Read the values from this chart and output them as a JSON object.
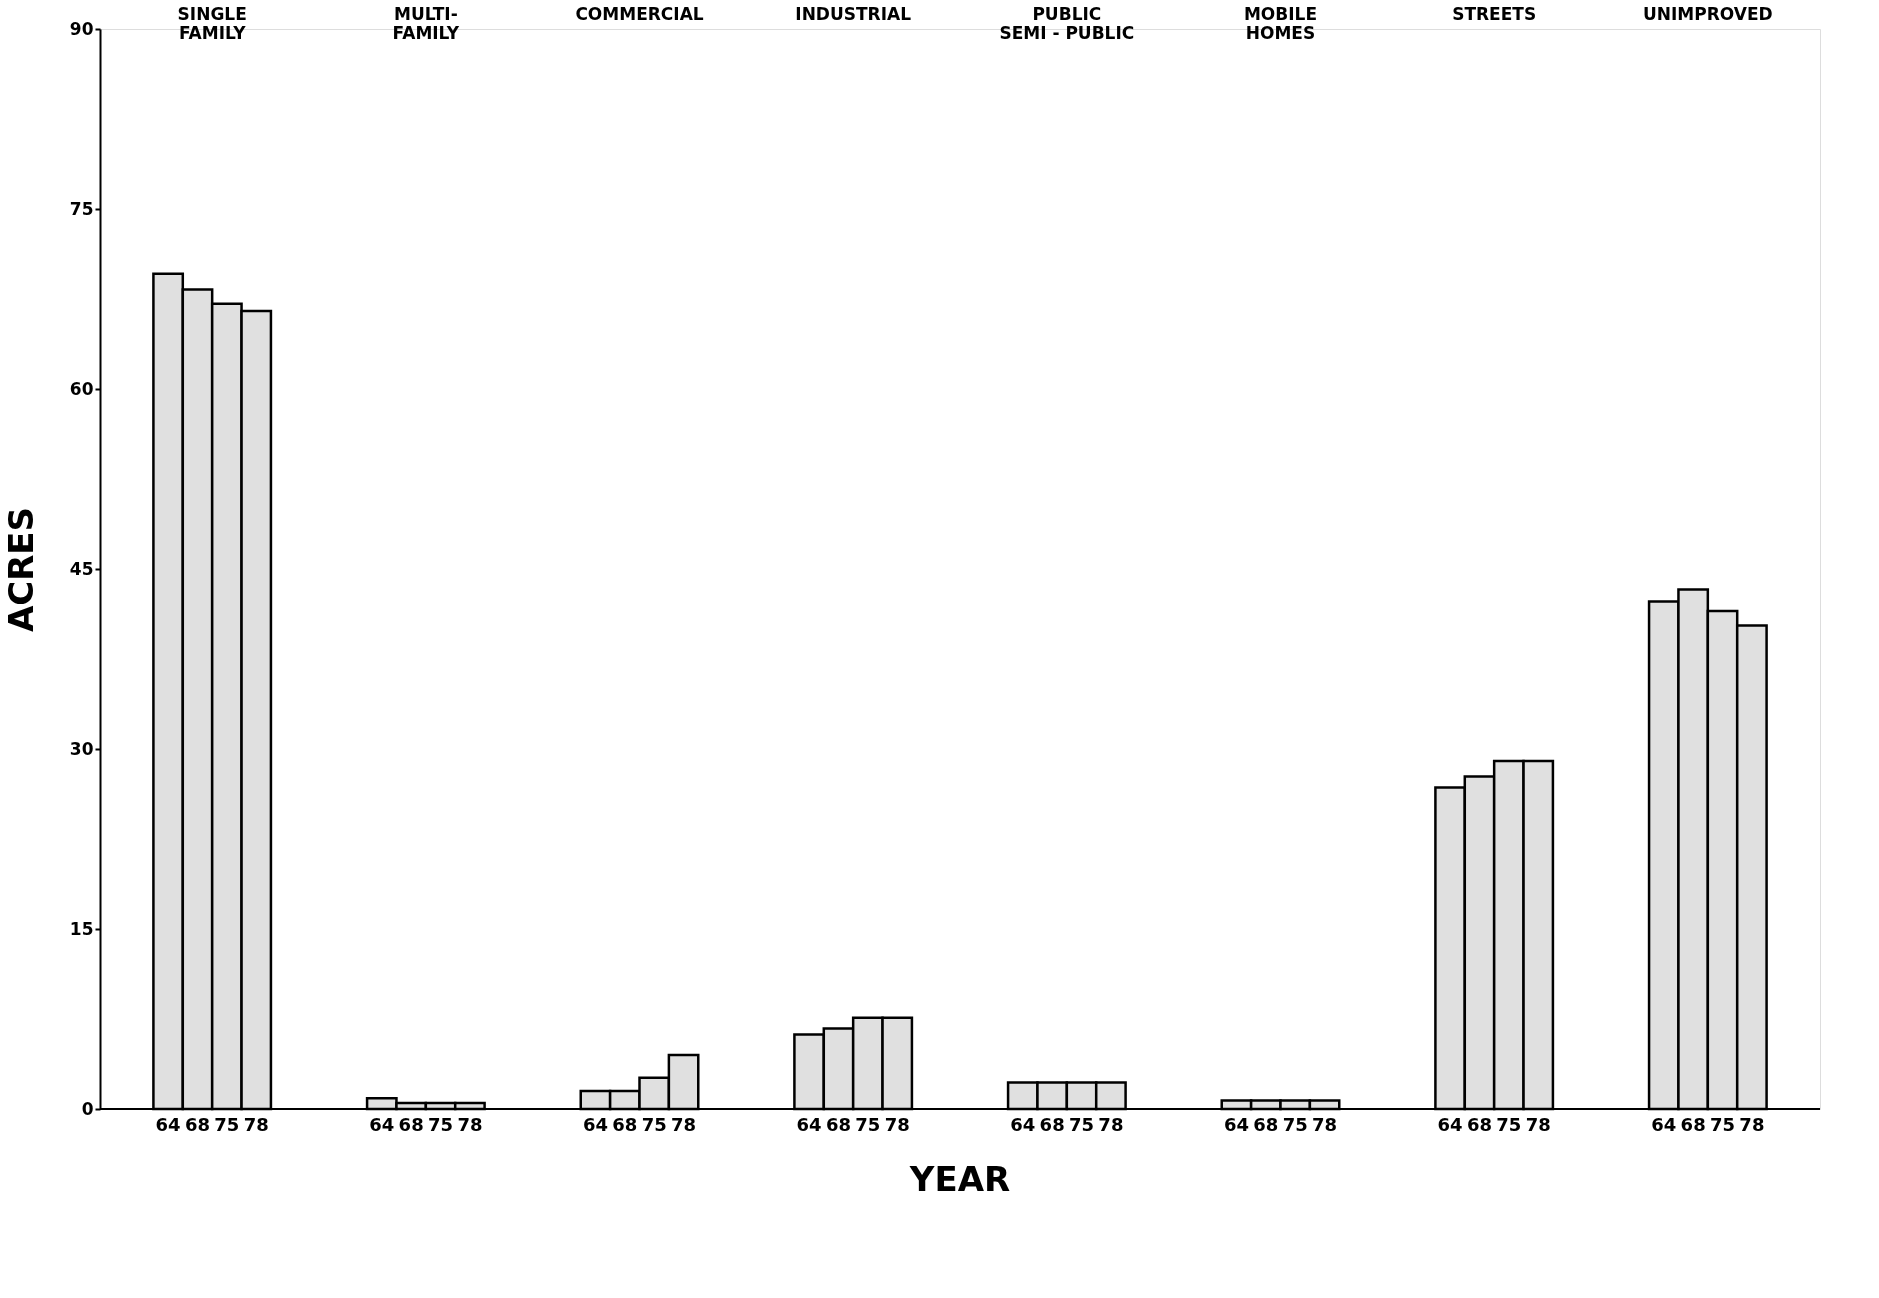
{
  "chart_data": {
    "type": "bar",
    "xlabel": "YEAR",
    "ylabel": "ACRES",
    "categories": [
      "SINGLE\nFAMILY",
      "MULTI-\nFAMILY",
      "COMMERCIAL",
      "INDUSTRIAL",
      "PUBLIC\nSEMI - PUBLIC",
      "MOBILE\nHOMES",
      "STREETS",
      "UNIMPROVED"
    ],
    "series": [
      {
        "name": "64",
        "color": "#e0e0e0",
        "values": [
          69.6,
          0.9,
          1.5,
          6.2,
          2.2,
          0.7,
          26.8,
          42.3
        ]
      },
      {
        "name": "68",
        "color": "#e0e0e0",
        "values": [
          68.3,
          0.5,
          1.5,
          6.7,
          2.2,
          0.7,
          27.7,
          43.3
        ]
      },
      {
        "name": "75",
        "color": "#e0e0e0",
        "values": [
          67.1,
          0.5,
          2.6,
          7.6,
          2.2,
          0.7,
          29.0,
          41.5
        ]
      },
      {
        "name": "78",
        "color": "#e0e0e0",
        "values": [
          66.5,
          0.5,
          4.5,
          7.6,
          2.2,
          0.7,
          29.0,
          40.3
        ]
      }
    ],
    "ylim": [
      0,
      90
    ],
    "yticks": [
      0,
      15,
      30,
      45,
      60,
      75,
      90
    ],
    "grid": false
  }
}
